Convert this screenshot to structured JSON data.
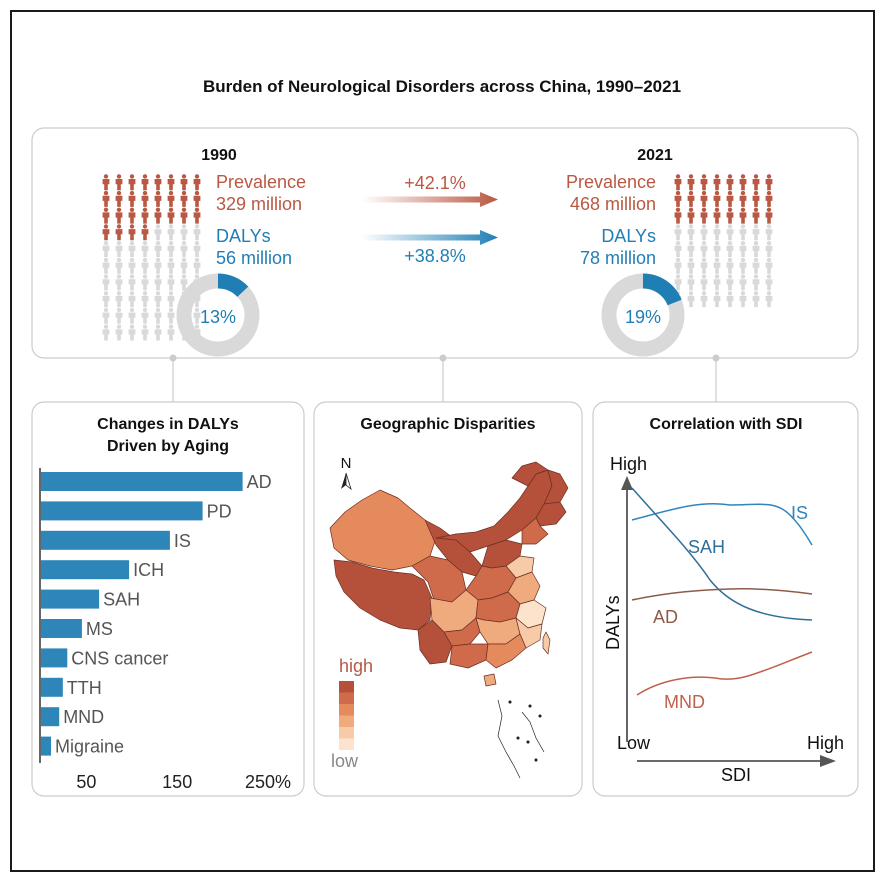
{
  "title": "Burden of Neurological Disorders across China, 1990–2021",
  "top_panel": {
    "year_1990": {
      "year": "1990",
      "prevalence_label": "Prevalence",
      "prevalence_value": "329 million",
      "dalys_label": "DALYs",
      "dalys_value": "56 million",
      "share_label": "13%",
      "share_fraction": 0.13,
      "pictogram_filled": 28,
      "pictogram_total": 80
    },
    "year_2021": {
      "year": "2021",
      "prevalence_label": "Prevalence",
      "prevalence_value": "468 million",
      "dalys_label": "DALYs",
      "dalys_value": "78 million",
      "share_label": "19%",
      "share_fraction": 0.19,
      "pictogram_filled": 24,
      "pictogram_total": 64
    },
    "prevalence_change": "+42.1%",
    "dalys_change": "+38.8%"
  },
  "aging_panel": {
    "title_line1": "Changes in DALYs",
    "title_line2": "Driven by Aging"
  },
  "geo_panel": {
    "title": "Geographic Disparities",
    "north_label": "N",
    "legend_high": "high",
    "legend_low": "low",
    "legend_colors": [
      "#b5503b",
      "#cf6a4a",
      "#e58a5c",
      "#efaa7e",
      "#f7cba8",
      "#fbe3cc"
    ]
  },
  "sdi_panel": {
    "title": "Correlation with SDI",
    "y_axis_label": "DALYs",
    "y_high": "High",
    "x_low": "Low",
    "x_high": "High",
    "x_axis_label": "SDI",
    "curves": [
      {
        "name": "IS",
        "color": "#2f86bd"
      },
      {
        "name": "SAH",
        "color": "#2f6f9a"
      },
      {
        "name": "AD",
        "color": "#8e5b4b"
      },
      {
        "name": "MND",
        "color": "#c0604a"
      }
    ]
  },
  "colors": {
    "prevalence": "#b95843",
    "dalys": "#1f7fb5",
    "bar": "#2e86b8",
    "grey_person": "#d9d9d9",
    "donut_grey": "#d9d9d9",
    "panel_border": "#cccccc"
  },
  "chart_data": {
    "type": "bar",
    "orientation": "horizontal",
    "title": "Changes in DALYs Driven by Aging",
    "categories": [
      "AD",
      "PD",
      "IS",
      "ICH",
      "SAH",
      "MS",
      "CNS cancer",
      "TTH",
      "MND",
      "Migraine"
    ],
    "values": [
      222,
      178,
      142,
      97,
      64,
      45,
      29,
      24,
      20,
      11
    ],
    "xlim": [
      0,
      270
    ],
    "xticks": [
      50,
      150,
      250
    ],
    "xtick_labels": [
      "50",
      "150",
      "250%"
    ],
    "xlabel": "",
    "ylabel": ""
  }
}
